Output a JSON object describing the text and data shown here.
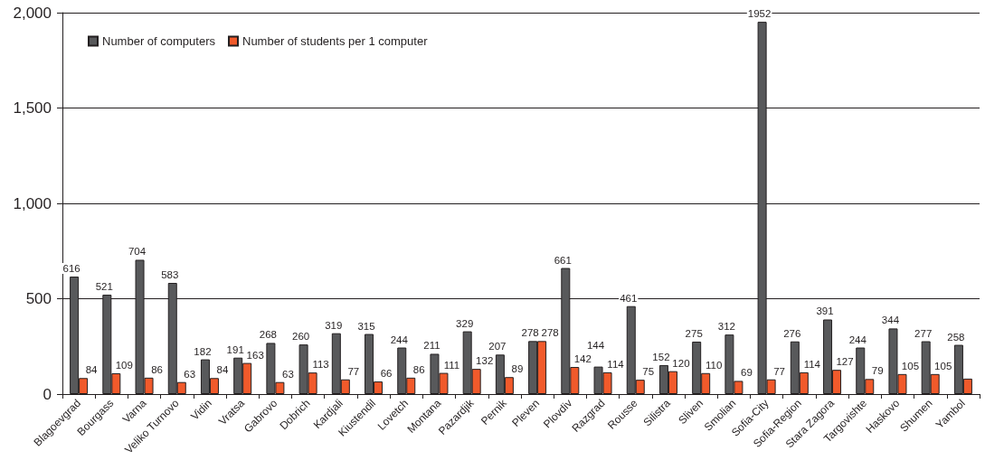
{
  "chart_data": {
    "type": "bar",
    "categories": [
      "Blagoevgrad",
      "Bourgass",
      "Varna",
      "Veliko Turnovo",
      "Vidin",
      "Vratsa",
      "Gabrovo",
      "Dobrich",
      "Kardjali",
      "Kiustendil",
      "Lovetch",
      "Montana",
      "Pazardjik",
      "Pernik",
      "Pleven",
      "Plovdiv",
      "Razgrad",
      "Rousse",
      "Silistra",
      "Sliven",
      "Smolian",
      "Sofia-City",
      "Sofia-Region",
      "Stara Zagora",
      "Targovishte",
      "Haskovo",
      "Shumen",
      "Yambol"
    ],
    "series": [
      {
        "name": "Number of computers",
        "color": "#58595b",
        "values": [
          616,
          521,
          704,
          583,
          182,
          191,
          268,
          260,
          319,
          315,
          244,
          211,
          329,
          207,
          278,
          661,
          144,
          461,
          152,
          275,
          312,
          1952,
          276,
          391,
          244,
          344,
          277,
          258
        ],
        "value_labels": [
          "616",
          "521",
          "704",
          "583",
          "182",
          "191",
          "268",
          "260",
          "319",
          "315",
          "244",
          "211",
          "329",
          "207",
          "278",
          "661",
          "144",
          "461",
          "152",
          "275",
          "312",
          "1952",
          "276",
          "391",
          "244",
          "344",
          "277",
          "258"
        ]
      },
      {
        "name": "Number of students per 1 computer",
        "color": "#f15a2b",
        "values": [
          84,
          109,
          86,
          63,
          84,
          163,
          63,
          113,
          77,
          66,
          86,
          111,
          132,
          89,
          278,
          142,
          114,
          75,
          120,
          110,
          69,
          77,
          114,
          127,
          79,
          105,
          105,
          81
        ],
        "value_labels": [
          "84",
          "109",
          "86",
          "63",
          "84",
          "163",
          "63",
          "113",
          "77",
          "66",
          "86",
          "111",
          "132",
          "89",
          "278",
          "142",
          "114",
          "75",
          "120",
          "110",
          "69",
          "77",
          "114",
          "127",
          "79",
          "105",
          "105",
          null
        ]
      }
    ],
    "ylim": [
      0,
      2000
    ],
    "yticks": [
      0,
      500,
      {
        "value": 1000,
        "label": "1,000"
      },
      {
        "value": 1500,
        "label": "1,500"
      },
      {
        "value": 2000,
        "label": "2,000"
      }
    ],
    "grid": "y",
    "legend": "top left"
  }
}
